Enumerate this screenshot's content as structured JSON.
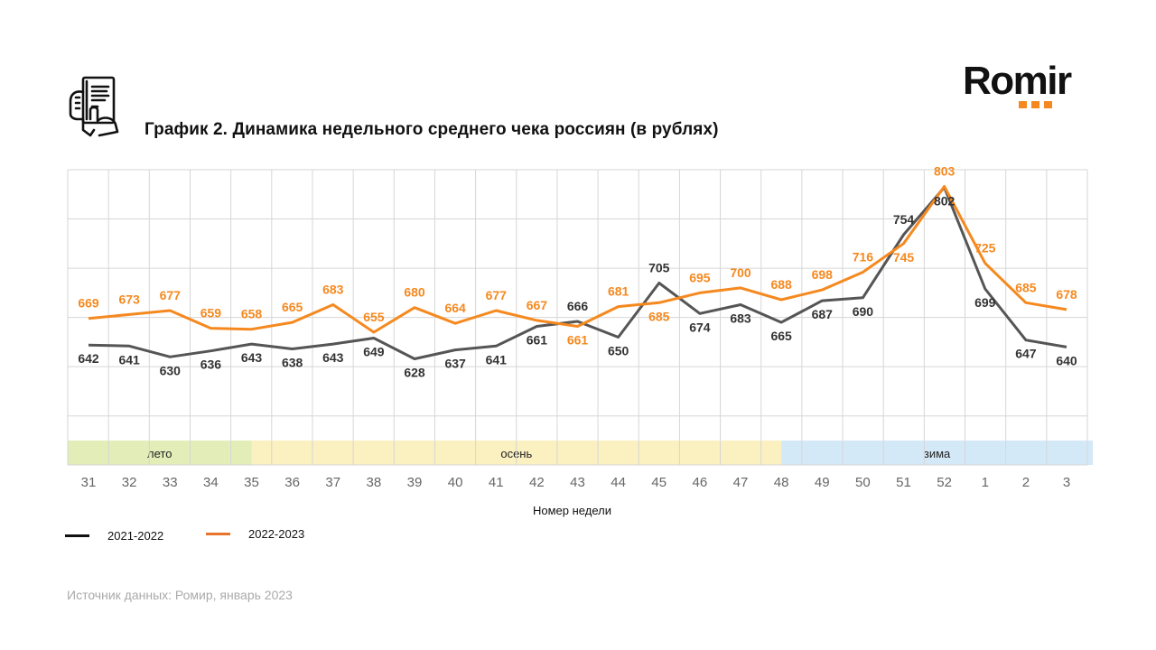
{
  "header": {
    "title": "График 2. Динамика недельного среднего чека россиян (в рублях)",
    "logo_text": "Romir",
    "icon": "receipt-in-hand-icon"
  },
  "chart_data": {
    "type": "line",
    "title": "График 2. Динамика недельного среднего чека россиян (в рублях)",
    "xlabel": "Номер недели",
    "ylabel": "",
    "categories": [
      "31",
      "32",
      "33",
      "34",
      "35",
      "36",
      "37",
      "38",
      "39",
      "40",
      "41",
      "42",
      "43",
      "44",
      "45",
      "46",
      "47",
      "48",
      "49",
      "50",
      "51",
      "52",
      "1",
      "2",
      "3"
    ],
    "series": [
      {
        "name": "2021-2022",
        "color": "#555555",
        "label_color": "#333333",
        "values": [
          642,
          641,
          630,
          636,
          643,
          638,
          643,
          649,
          628,
          637,
          641,
          661,
          666,
          650,
          705,
          674,
          683,
          665,
          687,
          690,
          754,
          802,
          699,
          647,
          640
        ]
      },
      {
        "name": "2022-2023",
        "color": "#f5891f",
        "label_color": "#f5891f",
        "values": [
          669,
          673,
          677,
          659,
          658,
          665,
          683,
          655,
          680,
          664,
          677,
          667,
          661,
          681,
          685,
          695,
          700,
          688,
          698,
          716,
          745,
          803,
          725,
          685,
          678
        ]
      }
    ],
    "ylim": [
      545,
      820
    ],
    "gridlines_y": [
      570,
      620,
      670,
      720,
      770,
      820
    ],
    "grid": true,
    "seasons": [
      {
        "label": "лето",
        "from": "31",
        "to": "35",
        "color": "#e2edb8"
      },
      {
        "label": "осень",
        "from": "35",
        "to": "48",
        "color": "#fbf0c0"
      },
      {
        "label": "зима",
        "from": "48",
        "to": "3",
        "color": "#d4e9f8"
      }
    ],
    "legend": {
      "placement": "bottom-left",
      "entries": [
        "2021-2022",
        "2022-2023"
      ]
    }
  },
  "legend": {
    "items": [
      {
        "label": "2021-2022",
        "color": "#111111"
      },
      {
        "label": "2022-2023",
        "color": "#e8732a"
      }
    ]
  },
  "footer": {
    "source": "Источник данных:  Ромир, январь 2023"
  }
}
